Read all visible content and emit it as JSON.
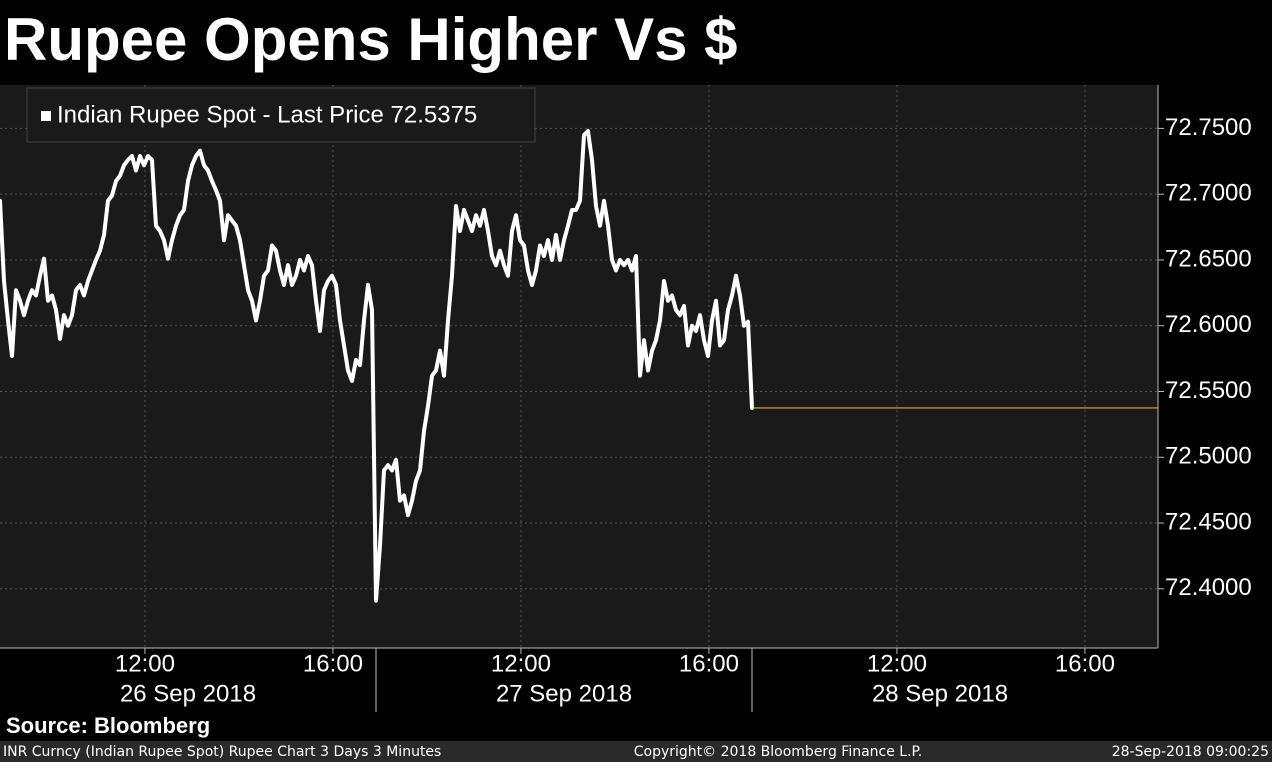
{
  "chart_data": {
    "type": "line",
    "title": "Rupee Opens Higher Vs $",
    "series": [
      {
        "name": "Indian Rupee Spot - Last Price 72.5375",
        "color": "#ffffff",
        "values": [
          72.695,
          72.634,
          72.604,
          72.577,
          72.627,
          72.619,
          72.608,
          72.619,
          72.627,
          72.623,
          72.638,
          72.651,
          72.619,
          72.623,
          72.612,
          72.59,
          72.608,
          72.6,
          72.608,
          72.627,
          72.631,
          72.623,
          72.634,
          72.642,
          72.65,
          72.657,
          72.669,
          72.695,
          72.699,
          72.71,
          72.714,
          72.722,
          72.726,
          72.729,
          72.718,
          72.729,
          72.722,
          72.729,
          72.726,
          72.676,
          72.672,
          72.665,
          72.651,
          72.665,
          72.676,
          72.684,
          72.688,
          72.71,
          72.722,
          72.729,
          72.733,
          72.722,
          72.718,
          72.71,
          72.703,
          72.695,
          72.665,
          72.684,
          72.68,
          72.676,
          72.665,
          72.646,
          72.627,
          72.619,
          72.604,
          72.619,
          72.638,
          72.642,
          72.661,
          72.657,
          72.642,
          72.631,
          72.646,
          72.631,
          72.638,
          72.65,
          72.642,
          72.653,
          72.646,
          72.619,
          72.596,
          72.627,
          72.634,
          72.638,
          72.631,
          72.604,
          72.585,
          72.566,
          72.558,
          72.574,
          72.57,
          72.604,
          72.631,
          72.612,
          72.391,
          72.433,
          72.49,
          72.494,
          72.49,
          72.498,
          72.467,
          72.471,
          72.456,
          72.467,
          72.482,
          72.49,
          72.52,
          72.539,
          72.562,
          72.566,
          72.581,
          72.562,
          72.604,
          72.638,
          72.691,
          72.672,
          72.688,
          72.68,
          72.672,
          72.684,
          72.676,
          72.688,
          72.672,
          72.653,
          72.646,
          72.657,
          72.646,
          72.638,
          72.672,
          72.684,
          72.665,
          72.661,
          72.642,
          72.631,
          72.642,
          72.661,
          72.653,
          72.665,
          72.65,
          72.669,
          72.65,
          72.665,
          72.676,
          72.688,
          72.688,
          72.695,
          72.745,
          72.748,
          72.726,
          72.691,
          72.676,
          72.695,
          72.676,
          72.65,
          72.642,
          72.65,
          72.646,
          72.65,
          72.642,
          72.653,
          72.562,
          72.589,
          72.566,
          72.581,
          72.589,
          72.604,
          72.634,
          72.619,
          72.623,
          72.612,
          72.608,
          72.615,
          72.585,
          72.6,
          72.596,
          72.608,
          72.589,
          72.577,
          72.604,
          72.619,
          72.585,
          72.589,
          72.612,
          72.623,
          72.638,
          72.623,
          72.6,
          72.603,
          72.5375
        ]
      }
    ],
    "last_price_color": "#f0a030",
    "ylim": [
      72.355,
      72.783
    ],
    "yticks": [
      {
        "value": 72.4,
        "label": "72.4000"
      },
      {
        "value": 72.45,
        "label": "72.4500"
      },
      {
        "value": 72.5,
        "label": "72.5000"
      },
      {
        "value": 72.55,
        "label": "72.5500"
      },
      {
        "value": 72.6,
        "label": "72.6000"
      },
      {
        "value": 72.65,
        "label": "72.6500"
      },
      {
        "value": 72.7,
        "label": "72.7000"
      },
      {
        "value": 72.75,
        "label": "72.7500"
      }
    ],
    "days": [
      {
        "label": "26 Sep 2018",
        "ticks": [
          "12:00",
          "16:00"
        ]
      },
      {
        "label": "27 Sep 2018",
        "ticks": [
          "12:00",
          "16:00"
        ]
      },
      {
        "label": "28 Sep 2018",
        "ticks": [
          "12:00",
          "16:00"
        ]
      }
    ],
    "grid": true,
    "source": "Source: Bloomberg",
    "description": "INR Curncy (Indian Rupee Spot) Rupee Chart 3 Days 3 Minutes",
    "copyright": "Copyright© 2018 Bloomberg Finance L.P.",
    "timestamp": "28-Sep-2018 09:00:25"
  }
}
